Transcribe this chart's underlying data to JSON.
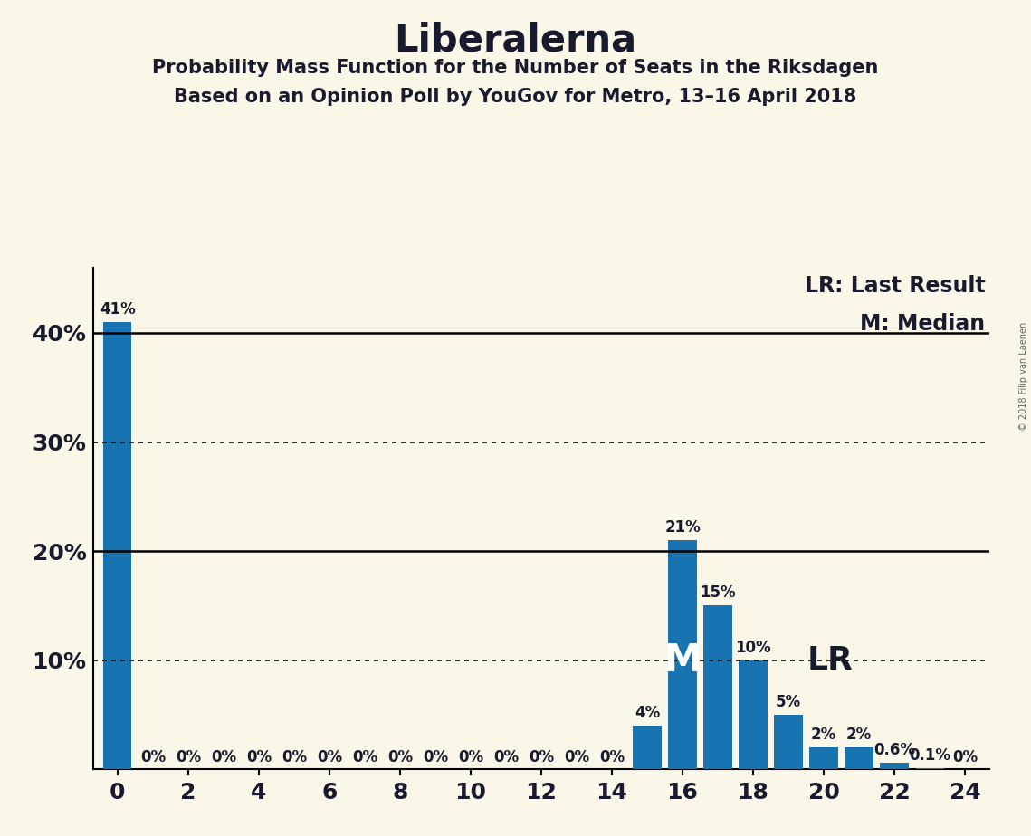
{
  "title": "Liberalerna",
  "subtitle1": "Probability Mass Function for the Number of Seats in the Riksdagen",
  "subtitle2": "Based on an Opinion Poll by YouGov for Metro, 13–16 April 2018",
  "copyright": "© 2018 Filip van Laenen",
  "background_color": "#faf6e8",
  "bar_color": "#1874b0",
  "seats": [
    0,
    1,
    2,
    3,
    4,
    5,
    6,
    7,
    8,
    9,
    10,
    11,
    12,
    13,
    14,
    15,
    16,
    17,
    18,
    19,
    20,
    21,
    22,
    23,
    24
  ],
  "probabilities": [
    41,
    0,
    0,
    0,
    0,
    0,
    0,
    0,
    0,
    0,
    0,
    0,
    0,
    0,
    0,
    4,
    21,
    15,
    10,
    5,
    2,
    2,
    0.6,
    0.1,
    0
  ],
  "bar_labels": [
    "41%",
    "0%",
    "0%",
    "0%",
    "0%",
    "0%",
    "0%",
    "0%",
    "0%",
    "0%",
    "0%",
    "0%",
    "0%",
    "0%",
    "0%",
    "4%",
    "21%",
    "15%",
    "10%",
    "5%",
    "2%",
    "2%",
    "0.6%",
    "0.1%",
    "0%"
  ],
  "yticks": [
    0,
    10,
    20,
    30,
    40
  ],
  "ylim": [
    0,
    46
  ],
  "xlim": [
    -0.7,
    24.7
  ],
  "xticks": [
    0,
    2,
    4,
    6,
    8,
    10,
    12,
    14,
    16,
    18,
    20,
    22,
    24
  ],
  "hlines_solid": [
    20,
    40
  ],
  "hlines_dotted": [
    10,
    30
  ],
  "median_seat": 16,
  "last_result_seat": 19,
  "legend_lr": "LR: Last Result",
  "legend_m": "M: Median",
  "title_fontsize": 30,
  "subtitle_fontsize": 15,
  "tick_fontsize": 18,
  "bar_label_fontsize": 12,
  "legend_fontsize": 17,
  "m_label_fontsize": 30,
  "lr_label_fontsize": 26,
  "dark_color": "#1a1a2e"
}
